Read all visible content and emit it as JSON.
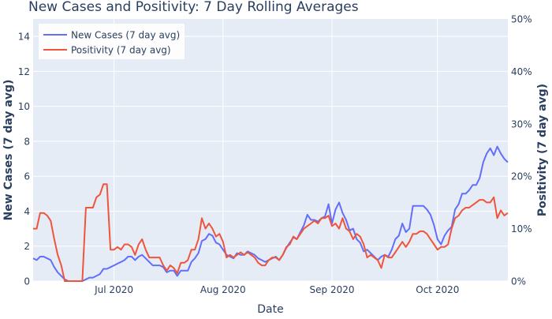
{
  "chart_data": {
    "type": "line",
    "title": "New Cases and Positivity: 7 Day Rolling Averages",
    "xlabel": "Date",
    "ylabel": "New Cases (7 day avg)",
    "y2label": "Positivity (7 day avg)",
    "xlim": [
      "2020-06-08",
      "2020-10-21"
    ],
    "ylim": [
      0,
      15
    ],
    "y2lim": [
      0,
      0.5
    ],
    "x_ticks": [
      {
        "date": "2020-07-01",
        "label": "Jul 2020"
      },
      {
        "date": "2020-08-01",
        "label": "Aug 2020"
      },
      {
        "date": "2020-09-01",
        "label": "Sep 2020"
      },
      {
        "date": "2020-10-01",
        "label": "Oct 2020"
      }
    ],
    "y_ticks": [
      0,
      2,
      4,
      6,
      8,
      10,
      12,
      14
    ],
    "y2_ticks": [
      {
        "value": 0,
        "label": "0%"
      },
      {
        "value": 0.1,
        "label": "10%"
      },
      {
        "value": 0.2,
        "label": "20%"
      },
      {
        "value": 0.3,
        "label": "30%"
      },
      {
        "value": 0.4,
        "label": "40%"
      },
      {
        "value": 0.5,
        "label": "50%"
      }
    ],
    "grid": true,
    "legend_position": "top-left",
    "series": [
      {
        "name": "New Cases (7 day avg)",
        "axis": "y",
        "color": "#636efa",
        "points": [
          [
            "2020-06-08",
            1.3
          ],
          [
            "2020-06-09",
            1.2
          ],
          [
            "2020-06-10",
            1.4
          ],
          [
            "2020-06-11",
            1.4
          ],
          [
            "2020-06-12",
            1.3
          ],
          [
            "2020-06-13",
            1.2
          ],
          [
            "2020-06-14",
            0.8
          ],
          [
            "2020-06-15",
            0.5
          ],
          [
            "2020-06-16",
            0.3
          ],
          [
            "2020-06-17",
            0.1
          ],
          [
            "2020-06-18",
            0.0
          ],
          [
            "2020-06-19",
            0.0
          ],
          [
            "2020-06-20",
            0.0
          ],
          [
            "2020-06-21",
            0.0
          ],
          [
            "2020-06-22",
            0.0
          ],
          [
            "2020-06-23",
            0.1
          ],
          [
            "2020-06-24",
            0.2
          ],
          [
            "2020-06-25",
            0.2
          ],
          [
            "2020-06-26",
            0.3
          ],
          [
            "2020-06-27",
            0.4
          ],
          [
            "2020-06-28",
            0.7
          ],
          [
            "2020-06-29",
            0.7
          ],
          [
            "2020-06-30",
            0.8
          ],
          [
            "2020-07-01",
            0.9
          ],
          [
            "2020-07-02",
            1.0
          ],
          [
            "2020-07-03",
            1.1
          ],
          [
            "2020-07-04",
            1.2
          ],
          [
            "2020-07-05",
            1.4
          ],
          [
            "2020-07-06",
            1.4
          ],
          [
            "2020-07-07",
            1.2
          ],
          [
            "2020-07-08",
            1.4
          ],
          [
            "2020-07-09",
            1.5
          ],
          [
            "2020-07-10",
            1.3
          ],
          [
            "2020-07-11",
            1.1
          ],
          [
            "2020-07-12",
            0.9
          ],
          [
            "2020-07-13",
            0.9
          ],
          [
            "2020-07-14",
            0.9
          ],
          [
            "2020-07-15",
            0.8
          ],
          [
            "2020-07-16",
            0.5
          ],
          [
            "2020-07-17",
            0.6
          ],
          [
            "2020-07-18",
            0.6
          ],
          [
            "2020-07-19",
            0.3
          ],
          [
            "2020-07-20",
            0.6
          ],
          [
            "2020-07-21",
            0.6
          ],
          [
            "2020-07-22",
            0.6
          ],
          [
            "2020-07-23",
            1.1
          ],
          [
            "2020-07-24",
            1.3
          ],
          [
            "2020-07-25",
            1.6
          ],
          [
            "2020-07-26",
            2.3
          ],
          [
            "2020-07-27",
            2.4
          ],
          [
            "2020-07-28",
            2.7
          ],
          [
            "2020-07-29",
            2.6
          ],
          [
            "2020-07-30",
            2.2
          ],
          [
            "2020-07-31",
            2.1
          ],
          [
            "2020-08-01",
            1.8
          ],
          [
            "2020-08-02",
            1.5
          ],
          [
            "2020-08-03",
            1.4
          ],
          [
            "2020-08-04",
            1.3
          ],
          [
            "2020-08-05",
            1.6
          ],
          [
            "2020-08-06",
            1.5
          ],
          [
            "2020-08-07",
            1.5
          ],
          [
            "2020-08-08",
            1.7
          ],
          [
            "2020-08-09",
            1.6
          ],
          [
            "2020-08-10",
            1.5
          ],
          [
            "2020-08-11",
            1.3
          ],
          [
            "2020-08-12",
            1.2
          ],
          [
            "2020-08-13",
            1.1
          ],
          [
            "2020-08-14",
            1.2
          ],
          [
            "2020-08-15",
            1.3
          ],
          [
            "2020-08-16",
            1.4
          ],
          [
            "2020-08-17",
            1.2
          ],
          [
            "2020-08-18",
            1.5
          ],
          [
            "2020-08-19",
            1.9
          ],
          [
            "2020-08-20",
            2.2
          ],
          [
            "2020-08-21",
            2.5
          ],
          [
            "2020-08-22",
            2.4
          ],
          [
            "2020-08-23",
            2.8
          ],
          [
            "2020-08-24",
            3.2
          ],
          [
            "2020-08-25",
            3.8
          ],
          [
            "2020-08-26",
            3.5
          ],
          [
            "2020-08-27",
            3.5
          ],
          [
            "2020-08-28",
            3.4
          ],
          [
            "2020-08-29",
            3.6
          ],
          [
            "2020-08-30",
            3.7
          ],
          [
            "2020-08-31",
            4.4
          ],
          [
            "2020-09-01",
            3.3
          ],
          [
            "2020-09-02",
            4.1
          ],
          [
            "2020-09-03",
            4.5
          ],
          [
            "2020-09-04",
            3.9
          ],
          [
            "2020-09-05",
            3.5
          ],
          [
            "2020-09-06",
            2.9
          ],
          [
            "2020-09-07",
            3.0
          ],
          [
            "2020-09-08",
            2.4
          ],
          [
            "2020-09-09",
            2.2
          ],
          [
            "2020-09-10",
            1.7
          ],
          [
            "2020-09-11",
            1.8
          ],
          [
            "2020-09-12",
            1.6
          ],
          [
            "2020-09-13",
            1.4
          ],
          [
            "2020-09-14",
            1.2
          ],
          [
            "2020-09-15",
            1.4
          ],
          [
            "2020-09-16",
            1.5
          ],
          [
            "2020-09-17",
            1.4
          ],
          [
            "2020-09-18",
            1.8
          ],
          [
            "2020-09-19",
            2.4
          ],
          [
            "2020-09-20",
            2.6
          ],
          [
            "2020-09-21",
            3.3
          ],
          [
            "2020-09-22",
            2.8
          ],
          [
            "2020-09-23",
            3.0
          ],
          [
            "2020-09-24",
            4.3
          ],
          [
            "2020-09-25",
            4.3
          ],
          [
            "2020-09-26",
            4.3
          ],
          [
            "2020-09-27",
            4.3
          ],
          [
            "2020-09-28",
            4.1
          ],
          [
            "2020-09-29",
            3.8
          ],
          [
            "2020-09-30",
            3.2
          ],
          [
            "2020-10-01",
            2.4
          ],
          [
            "2020-10-02",
            2.1
          ],
          [
            "2020-10-03",
            2.6
          ],
          [
            "2020-10-04",
            2.9
          ],
          [
            "2020-10-05",
            3.1
          ],
          [
            "2020-10-06",
            4.1
          ],
          [
            "2020-10-07",
            4.4
          ],
          [
            "2020-10-08",
            5.0
          ],
          [
            "2020-10-09",
            5.0
          ],
          [
            "2020-10-10",
            5.2
          ],
          [
            "2020-10-11",
            5.5
          ],
          [
            "2020-10-12",
            5.5
          ],
          [
            "2020-10-13",
            5.9
          ],
          [
            "2020-10-14",
            6.8
          ],
          [
            "2020-10-15",
            7.3
          ],
          [
            "2020-10-16",
            7.6
          ],
          [
            "2020-10-17",
            7.2
          ],
          [
            "2020-10-18",
            7.7
          ],
          [
            "2020-10-19",
            7.3
          ],
          [
            "2020-10-20",
            7.0
          ],
          [
            "2020-10-21",
            6.8
          ]
        ]
      },
      {
        "name": "Positivity (7 day avg)",
        "axis": "y2",
        "color": "#ef553b",
        "points": [
          [
            "2020-06-08",
            0.1
          ],
          [
            "2020-06-09",
            0.1
          ],
          [
            "2020-06-10",
            0.13
          ],
          [
            "2020-06-11",
            0.13
          ],
          [
            "2020-06-12",
            0.125
          ],
          [
            "2020-06-13",
            0.115
          ],
          [
            "2020-06-14",
            0.08
          ],
          [
            "2020-06-15",
            0.05
          ],
          [
            "2020-06-16",
            0.03
          ],
          [
            "2020-06-17",
            0.0
          ],
          [
            "2020-06-18",
            0.0
          ],
          [
            "2020-06-19",
            0.0
          ],
          [
            "2020-06-20",
            0.0
          ],
          [
            "2020-06-21",
            0.0
          ],
          [
            "2020-06-22",
            0.0
          ],
          [
            "2020-06-23",
            0.14
          ],
          [
            "2020-06-24",
            0.14
          ],
          [
            "2020-06-25",
            0.14
          ],
          [
            "2020-06-26",
            0.16
          ],
          [
            "2020-06-27",
            0.165
          ],
          [
            "2020-06-28",
            0.185
          ],
          [
            "2020-06-29",
            0.185
          ],
          [
            "2020-06-30",
            0.06
          ],
          [
            "2020-07-01",
            0.06
          ],
          [
            "2020-07-02",
            0.065
          ],
          [
            "2020-07-03",
            0.06
          ],
          [
            "2020-07-04",
            0.07
          ],
          [
            "2020-07-05",
            0.07
          ],
          [
            "2020-07-06",
            0.065
          ],
          [
            "2020-07-07",
            0.05
          ],
          [
            "2020-07-08",
            0.07
          ],
          [
            "2020-07-09",
            0.08
          ],
          [
            "2020-07-10",
            0.06
          ],
          [
            "2020-07-11",
            0.045
          ],
          [
            "2020-07-12",
            0.045
          ],
          [
            "2020-07-13",
            0.045
          ],
          [
            "2020-07-14",
            0.045
          ],
          [
            "2020-07-15",
            0.03
          ],
          [
            "2020-07-16",
            0.02
          ],
          [
            "2020-07-17",
            0.03
          ],
          [
            "2020-07-18",
            0.025
          ],
          [
            "2020-07-19",
            0.015
          ],
          [
            "2020-07-20",
            0.035
          ],
          [
            "2020-07-21",
            0.035
          ],
          [
            "2020-07-22",
            0.04
          ],
          [
            "2020-07-23",
            0.06
          ],
          [
            "2020-07-24",
            0.06
          ],
          [
            "2020-07-25",
            0.08
          ],
          [
            "2020-07-26",
            0.12
          ],
          [
            "2020-07-27",
            0.1
          ],
          [
            "2020-07-28",
            0.11
          ],
          [
            "2020-07-29",
            0.1
          ],
          [
            "2020-07-30",
            0.085
          ],
          [
            "2020-07-31",
            0.09
          ],
          [
            "2020-08-01",
            0.075
          ],
          [
            "2020-08-02",
            0.045
          ],
          [
            "2020-08-03",
            0.05
          ],
          [
            "2020-08-04",
            0.045
          ],
          [
            "2020-08-05",
            0.05
          ],
          [
            "2020-08-06",
            0.055
          ],
          [
            "2020-08-07",
            0.05
          ],
          [
            "2020-08-08",
            0.055
          ],
          [
            "2020-08-09",
            0.05
          ],
          [
            "2020-08-10",
            0.045
          ],
          [
            "2020-08-11",
            0.035
          ],
          [
            "2020-08-12",
            0.03
          ],
          [
            "2020-08-13",
            0.03
          ],
          [
            "2020-08-14",
            0.04
          ],
          [
            "2020-08-15",
            0.045
          ],
          [
            "2020-08-16",
            0.045
          ],
          [
            "2020-08-17",
            0.04
          ],
          [
            "2020-08-18",
            0.05
          ],
          [
            "2020-08-19",
            0.065
          ],
          [
            "2020-08-20",
            0.07
          ],
          [
            "2020-08-21",
            0.085
          ],
          [
            "2020-08-22",
            0.08
          ],
          [
            "2020-08-23",
            0.09
          ],
          [
            "2020-08-24",
            0.1
          ],
          [
            "2020-08-25",
            0.105
          ],
          [
            "2020-08-26",
            0.11
          ],
          [
            "2020-08-27",
            0.115
          ],
          [
            "2020-08-28",
            0.11
          ],
          [
            "2020-08-29",
            0.12
          ],
          [
            "2020-08-30",
            0.12
          ],
          [
            "2020-08-31",
            0.125
          ],
          [
            "2020-09-01",
            0.105
          ],
          [
            "2020-09-02",
            0.11
          ],
          [
            "2020-09-03",
            0.1
          ],
          [
            "2020-09-04",
            0.12
          ],
          [
            "2020-09-05",
            0.1
          ],
          [
            "2020-09-06",
            0.095
          ],
          [
            "2020-09-07",
            0.08
          ],
          [
            "2020-09-08",
            0.09
          ],
          [
            "2020-09-09",
            0.085
          ],
          [
            "2020-09-10",
            0.07
          ],
          [
            "2020-09-11",
            0.045
          ],
          [
            "2020-09-12",
            0.05
          ],
          [
            "2020-09-13",
            0.045
          ],
          [
            "2020-09-14",
            0.04
          ],
          [
            "2020-09-15",
            0.025
          ],
          [
            "2020-09-16",
            0.05
          ],
          [
            "2020-09-17",
            0.045
          ],
          [
            "2020-09-18",
            0.045
          ],
          [
            "2020-09-19",
            0.055
          ],
          [
            "2020-09-20",
            0.065
          ],
          [
            "2020-09-21",
            0.075
          ],
          [
            "2020-09-22",
            0.065
          ],
          [
            "2020-09-23",
            0.075
          ],
          [
            "2020-09-24",
            0.09
          ],
          [
            "2020-09-25",
            0.09
          ],
          [
            "2020-09-26",
            0.095
          ],
          [
            "2020-09-27",
            0.095
          ],
          [
            "2020-09-28",
            0.09
          ],
          [
            "2020-09-29",
            0.08
          ],
          [
            "2020-09-30",
            0.07
          ],
          [
            "2020-10-01",
            0.06
          ],
          [
            "2020-10-02",
            0.065
          ],
          [
            "2020-10-03",
            0.065
          ],
          [
            "2020-10-04",
            0.07
          ],
          [
            "2020-10-05",
            0.1
          ],
          [
            "2020-10-06",
            0.12
          ],
          [
            "2020-10-07",
            0.125
          ],
          [
            "2020-10-08",
            0.135
          ],
          [
            "2020-10-09",
            0.14
          ],
          [
            "2020-10-10",
            0.14
          ],
          [
            "2020-10-11",
            0.145
          ],
          [
            "2020-10-12",
            0.15
          ],
          [
            "2020-10-13",
            0.155
          ],
          [
            "2020-10-14",
            0.155
          ],
          [
            "2020-10-15",
            0.15
          ],
          [
            "2020-10-16",
            0.15
          ],
          [
            "2020-10-17",
            0.16
          ],
          [
            "2020-10-18",
            0.12
          ],
          [
            "2020-10-19",
            0.135
          ],
          [
            "2020-10-20",
            0.125
          ],
          [
            "2020-10-21",
            0.13
          ]
        ]
      }
    ]
  }
}
